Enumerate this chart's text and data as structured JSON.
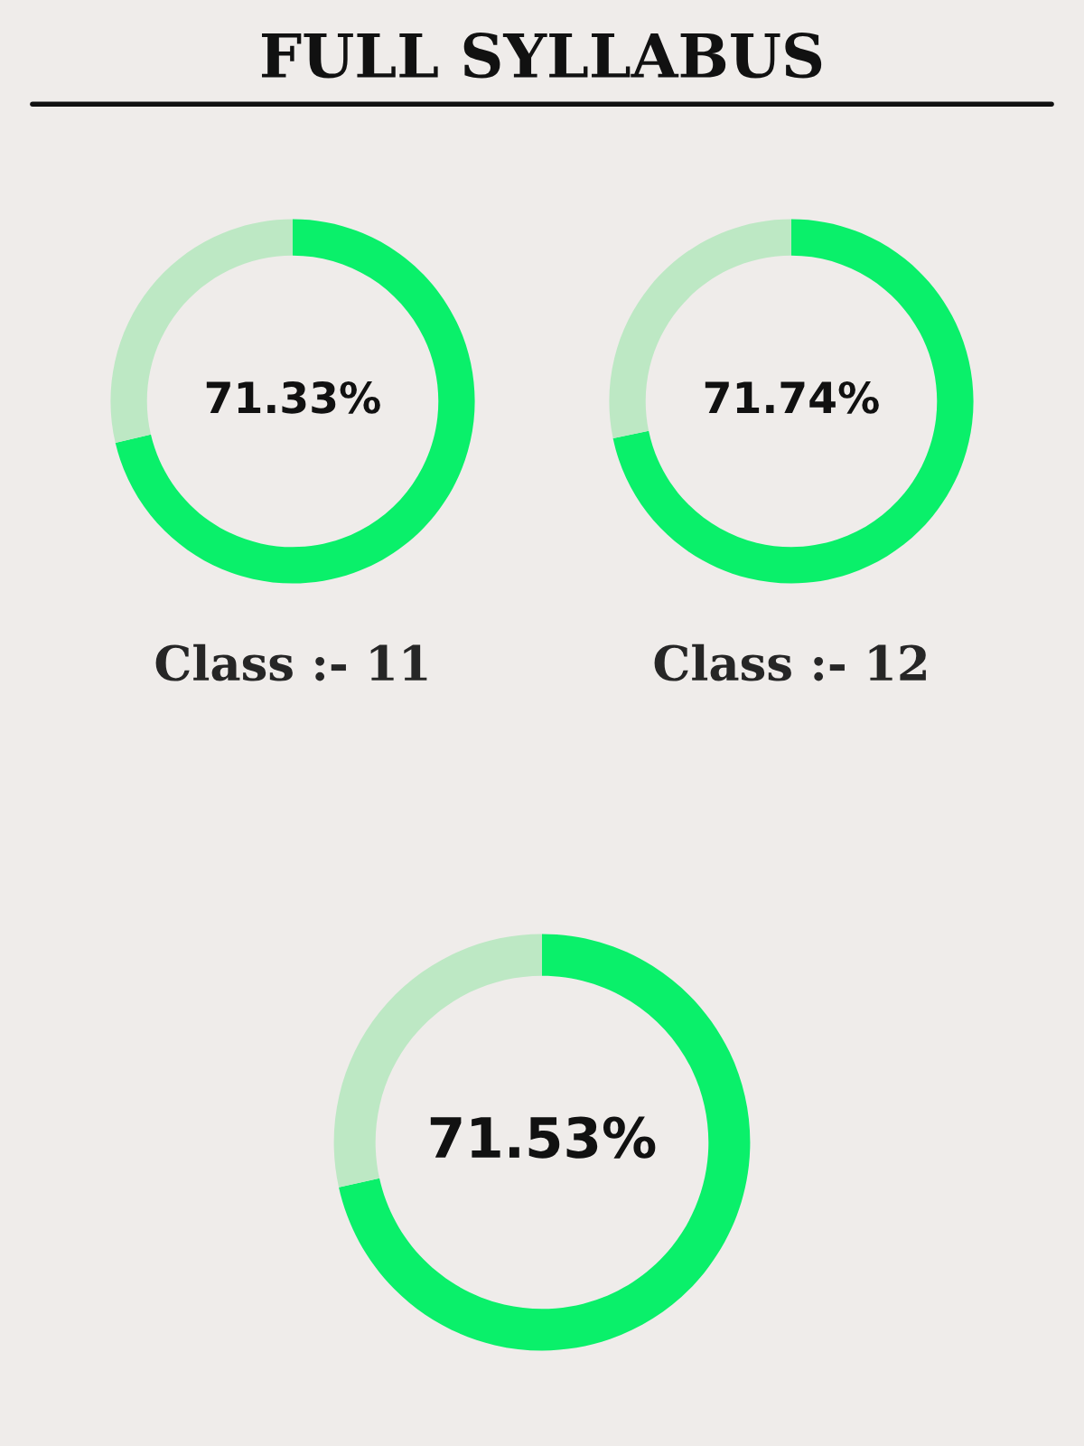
{
  "chart_data": [
    {
      "type": "donut",
      "title": "FULL SYLLABUS",
      "categories": [
        null,
        null
      ],
      "values": [
        71.33,
        28.67
      ],
      "colors": [
        "#0af06a",
        "#bde8c4"
      ],
      "annotations": [
        "71.33%"
      ],
      "xlabel": "Class :- 11"
    },
    {
      "type": "donut",
      "categories": [
        null,
        null
      ],
      "values": [
        71.74,
        28.26
      ],
      "colors": [
        "#0af06a",
        "#bde8c4"
      ],
      "annotations": [
        "71.74%"
      ],
      "xlabel": "Class :- 12"
    },
    {
      "type": "donut",
      "categories": [
        null,
        null
      ],
      "values": [
        71.53,
        28.47
      ],
      "colors": [
        "#0af06a",
        "#bde8c4"
      ],
      "annotations": [
        "71.53%"
      ]
    }
  ]
}
